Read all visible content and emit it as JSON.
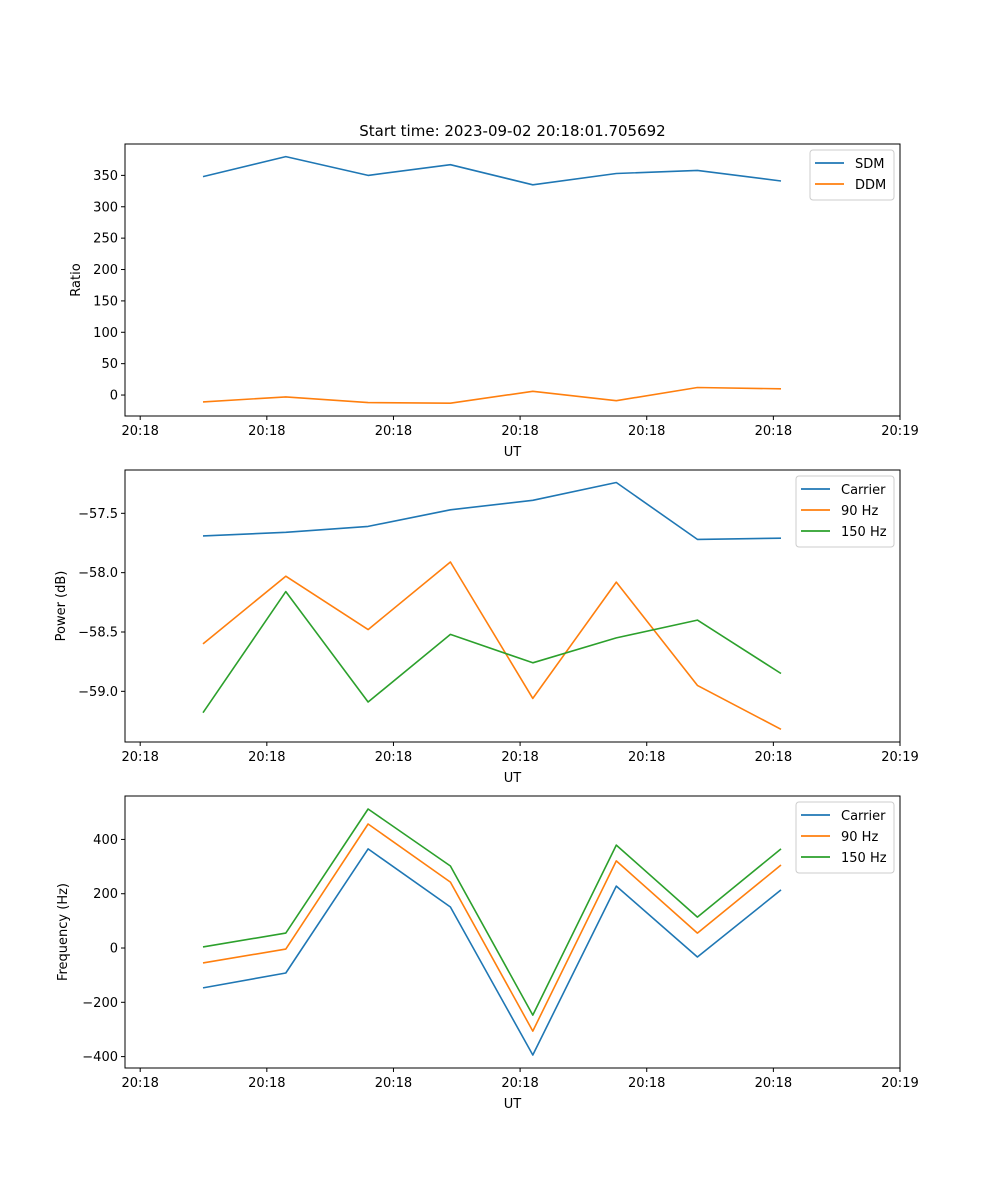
{
  "chart_data": [
    {
      "type": "line",
      "title": "Start time: 2023-09-02 20:18:01.705692",
      "xlabel": "UT",
      "ylabel": "Ratio",
      "x_seconds_after_2018": [
        4.96,
        11.5,
        18.0,
        24.5,
        31.0,
        37.6,
        44.0,
        50.6
      ],
      "xlim": [
        -1.2,
        60
      ],
      "xticks": [
        0,
        10,
        20,
        30,
        40,
        50,
        60
      ],
      "xtick_labels": [
        "20:18",
        "20:18",
        "20:18",
        "20:18",
        "20:18",
        "20:18",
        "20:19"
      ],
      "ylim": [
        -33.4,
        400
      ],
      "yticks": [
        0,
        50,
        100,
        150,
        200,
        250,
        300,
        350
      ],
      "ytick_labels": [
        "0",
        "50",
        "100",
        "150",
        "200",
        "250",
        "300",
        "350"
      ],
      "legend": "top-right",
      "grid": false,
      "series": [
        {
          "name": "SDM",
          "color": "#1f77b4",
          "values": [
            348,
            380,
            350,
            367,
            335,
            353,
            358,
            341
          ]
        },
        {
          "name": "DDM",
          "color": "#ff7f0e",
          "values": [
            -11,
            -3,
            -12,
            -13,
            6,
            -9,
            12,
            10
          ]
        }
      ]
    },
    {
      "type": "line",
      "xlabel": "UT",
      "ylabel": "Power (dB)",
      "x_seconds_after_2018": [
        4.96,
        11.5,
        18.0,
        24.5,
        31.0,
        37.6,
        44.0,
        50.6
      ],
      "xlim": [
        -1.2,
        60
      ],
      "xticks": [
        0,
        10,
        20,
        30,
        40,
        50,
        60
      ],
      "xtick_labels": [
        "20:18",
        "20:18",
        "20:18",
        "20:18",
        "20:18",
        "20:18",
        "20:19"
      ],
      "ylim": [
        -59.427,
        -57.135
      ],
      "yticks": [
        -57.5,
        -58.0,
        -58.5,
        -59.0
      ],
      "ytick_labels": [
        "−57.5",
        "−58.0",
        "−58.5",
        "−59.0"
      ],
      "legend": "top-right",
      "grid": false,
      "series": [
        {
          "name": "Carrier",
          "color": "#1f77b4",
          "values": [
            -57.69,
            -57.66,
            -57.61,
            -57.47,
            -57.39,
            -57.24,
            -57.72,
            -57.71
          ]
        },
        {
          "name": "90 Hz",
          "color": "#ff7f0e",
          "values": [
            -58.6,
            -58.03,
            -58.48,
            -57.91,
            -59.06,
            -58.08,
            -58.95,
            -59.32
          ]
        },
        {
          "name": "150 Hz",
          "color": "#2ca02c",
          "values": [
            -59.18,
            -58.16,
            -59.09,
            -58.52,
            -58.76,
            -58.55,
            -58.4,
            -58.85
          ]
        }
      ]
    },
    {
      "type": "line",
      "xlabel": "UT",
      "ylabel": "Frequency (Hz)",
      "x_seconds_after_2018": [
        4.96,
        11.5,
        18.0,
        24.5,
        31.0,
        37.6,
        44.0,
        50.6
      ],
      "xlim": [
        -1.2,
        60
      ],
      "xticks": [
        0,
        10,
        20,
        30,
        40,
        50,
        60
      ],
      "xtick_labels": [
        "20:18",
        "20:18",
        "20:18",
        "20:18",
        "20:18",
        "20:18",
        "20:19"
      ],
      "ylim": [
        -442,
        560
      ],
      "yticks": [
        400,
        200,
        0,
        -200,
        -400
      ],
      "ytick_labels": [
        "400",
        "200",
        "0",
        "−200",
        "−400"
      ],
      "legend": "top-right",
      "grid": false,
      "series": [
        {
          "name": "Carrier",
          "color": "#1f77b4",
          "values": [
            -147,
            -92,
            365,
            151,
            -394,
            228,
            -33,
            214
          ]
        },
        {
          "name": "90 Hz",
          "color": "#ff7f0e",
          "values": [
            -55,
            -4,
            457,
            243,
            -306,
            321,
            55,
            306
          ]
        },
        {
          "name": "150 Hz",
          "color": "#2ca02c",
          "values": [
            4,
            55,
            512,
            302,
            -247,
            379,
            114,
            365
          ]
        }
      ]
    }
  ]
}
